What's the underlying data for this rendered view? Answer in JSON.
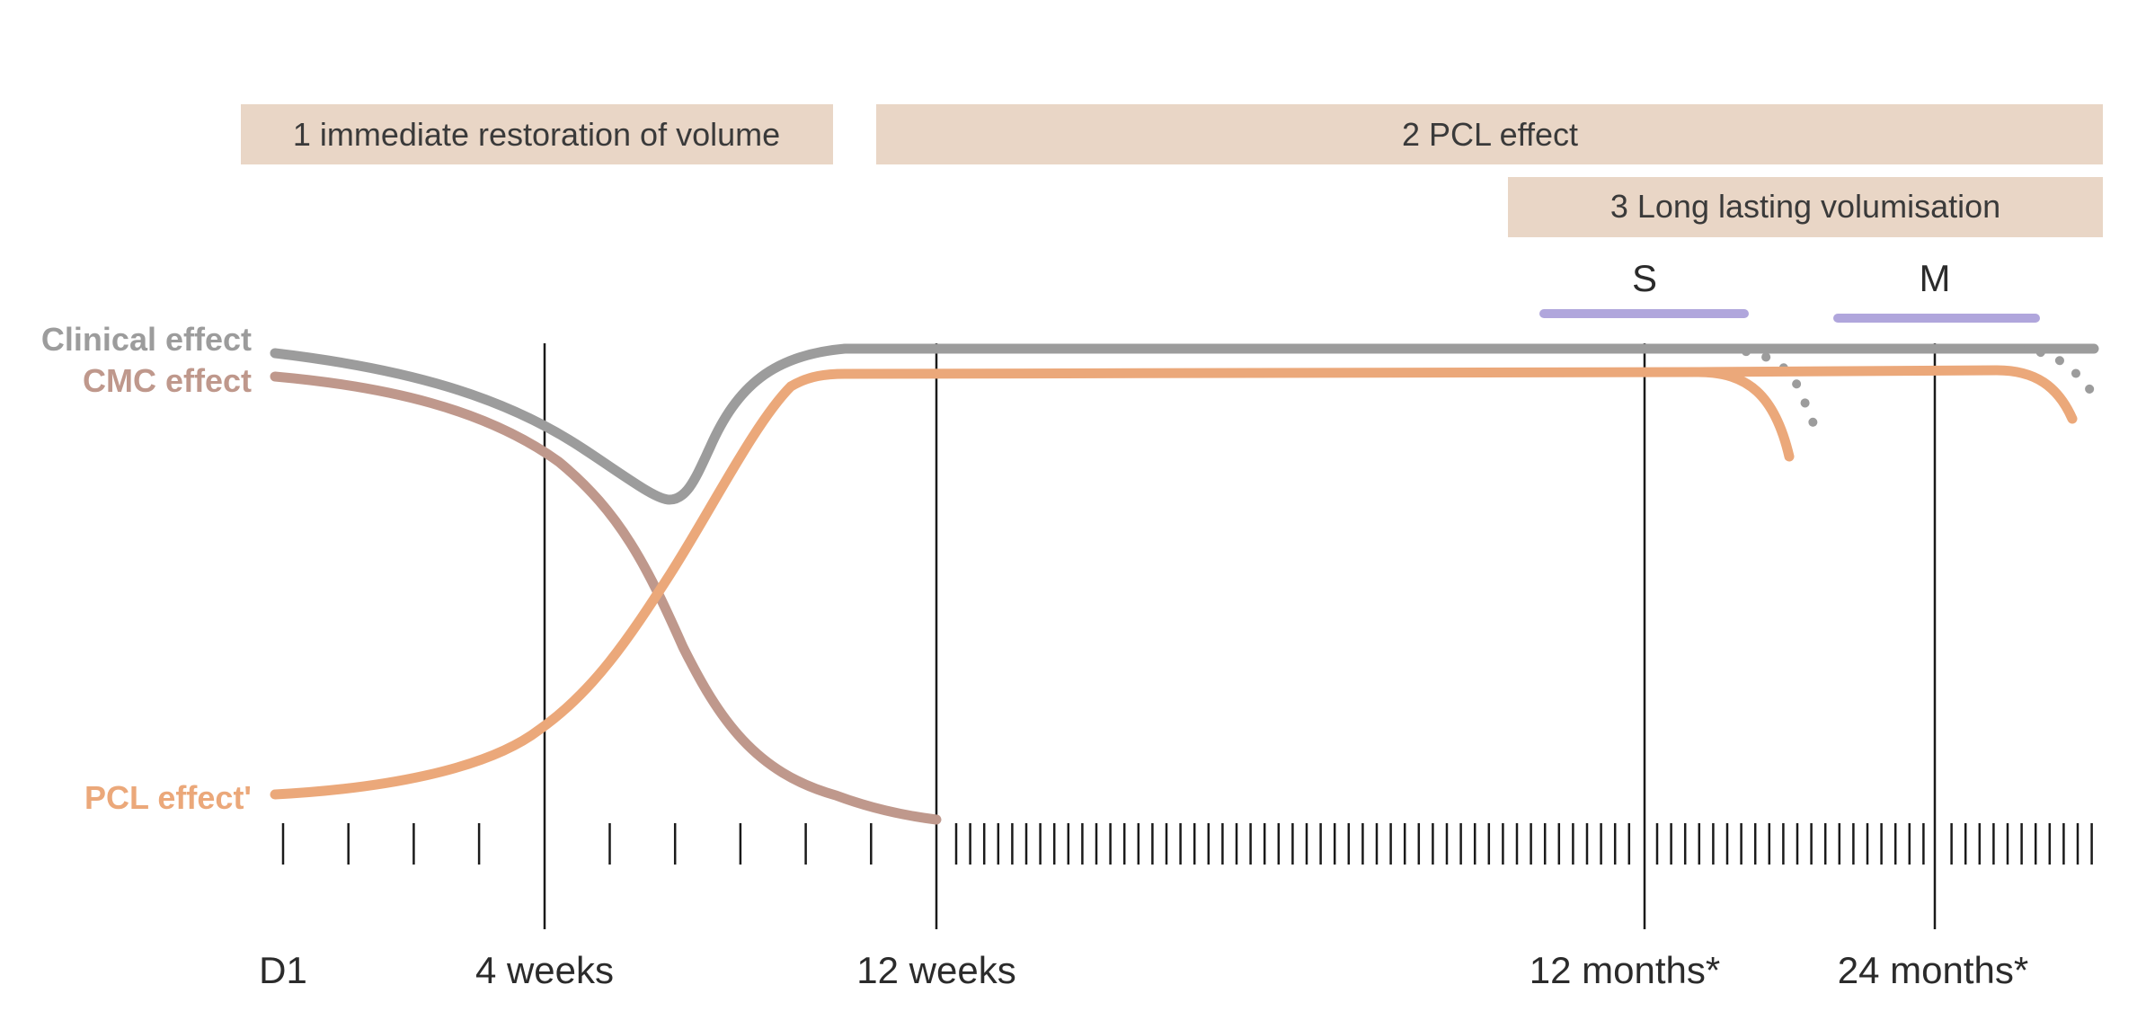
{
  "colors": {
    "band": "#e9d6c6",
    "clinical": "#9c9c9c",
    "cmc": "#bf988c",
    "pcl": "#eba87a",
    "sm_bar": "#b0a6dc",
    "line": "#1a1a1a"
  },
  "phases": [
    {
      "label": "1 immediate restoration of volume"
    },
    {
      "label": "2 PCL effect"
    },
    {
      "label": "3 Long lasting volumisation"
    }
  ],
  "variants": [
    {
      "label": "S"
    },
    {
      "label": "M"
    }
  ],
  "curve_labels": {
    "clinical": "Clinical effect",
    "cmc": "CMC effect",
    "pcl": "PCL effect'"
  },
  "axis": {
    "labels": [
      "D1",
      "4 weeks",
      "12 weeks",
      "12 months*",
      "24 months*"
    ]
  }
}
